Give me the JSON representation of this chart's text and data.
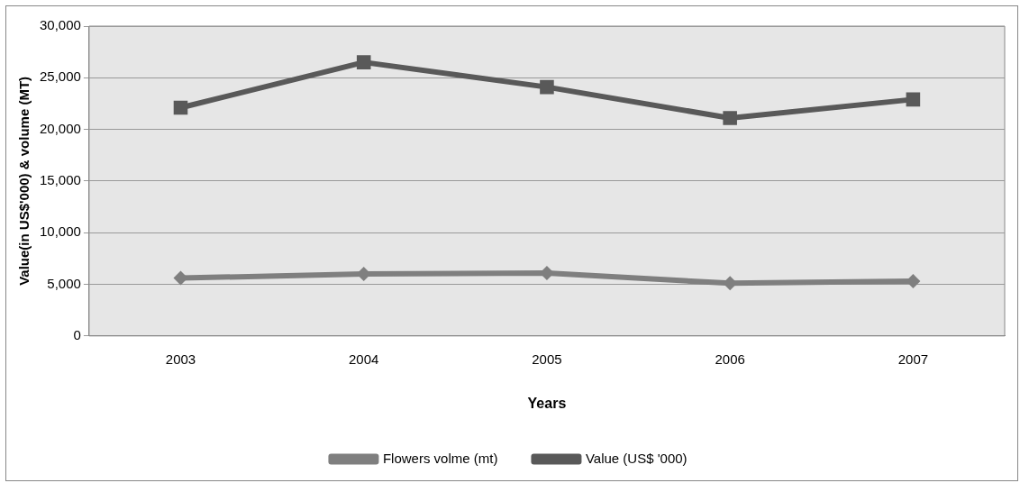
{
  "chart_data": {
    "type": "line",
    "xlabel": "Years",
    "ylabel": "Value(in US$'000) & volume (MT)",
    "categories": [
      "2003",
      "2004",
      "2005",
      "2006",
      "2007"
    ],
    "series": [
      {
        "name": "Flowers volme (mt)",
        "color": "#7f7f7f",
        "marker": "diamond",
        "values": [
          5600,
          6000,
          6100,
          5100,
          5300
        ]
      },
      {
        "name": "Value (US$ '000)",
        "color": "#595959",
        "marker": "square",
        "values": [
          22100,
          26500,
          24100,
          21100,
          22900
        ]
      }
    ],
    "ylim": [
      0,
      30000
    ],
    "yticks": [
      {
        "value": 0,
        "label": "0"
      },
      {
        "value": 5000,
        "label": "5,000"
      },
      {
        "value": 10000,
        "label": "10,000"
      },
      {
        "value": 15000,
        "label": "15,000"
      },
      {
        "value": 20000,
        "label": "20,000"
      },
      {
        "value": 25000,
        "label": "25,000"
      },
      {
        "value": 30000,
        "label": "30,000"
      }
    ],
    "grid": "y",
    "legend": "bottom"
  }
}
